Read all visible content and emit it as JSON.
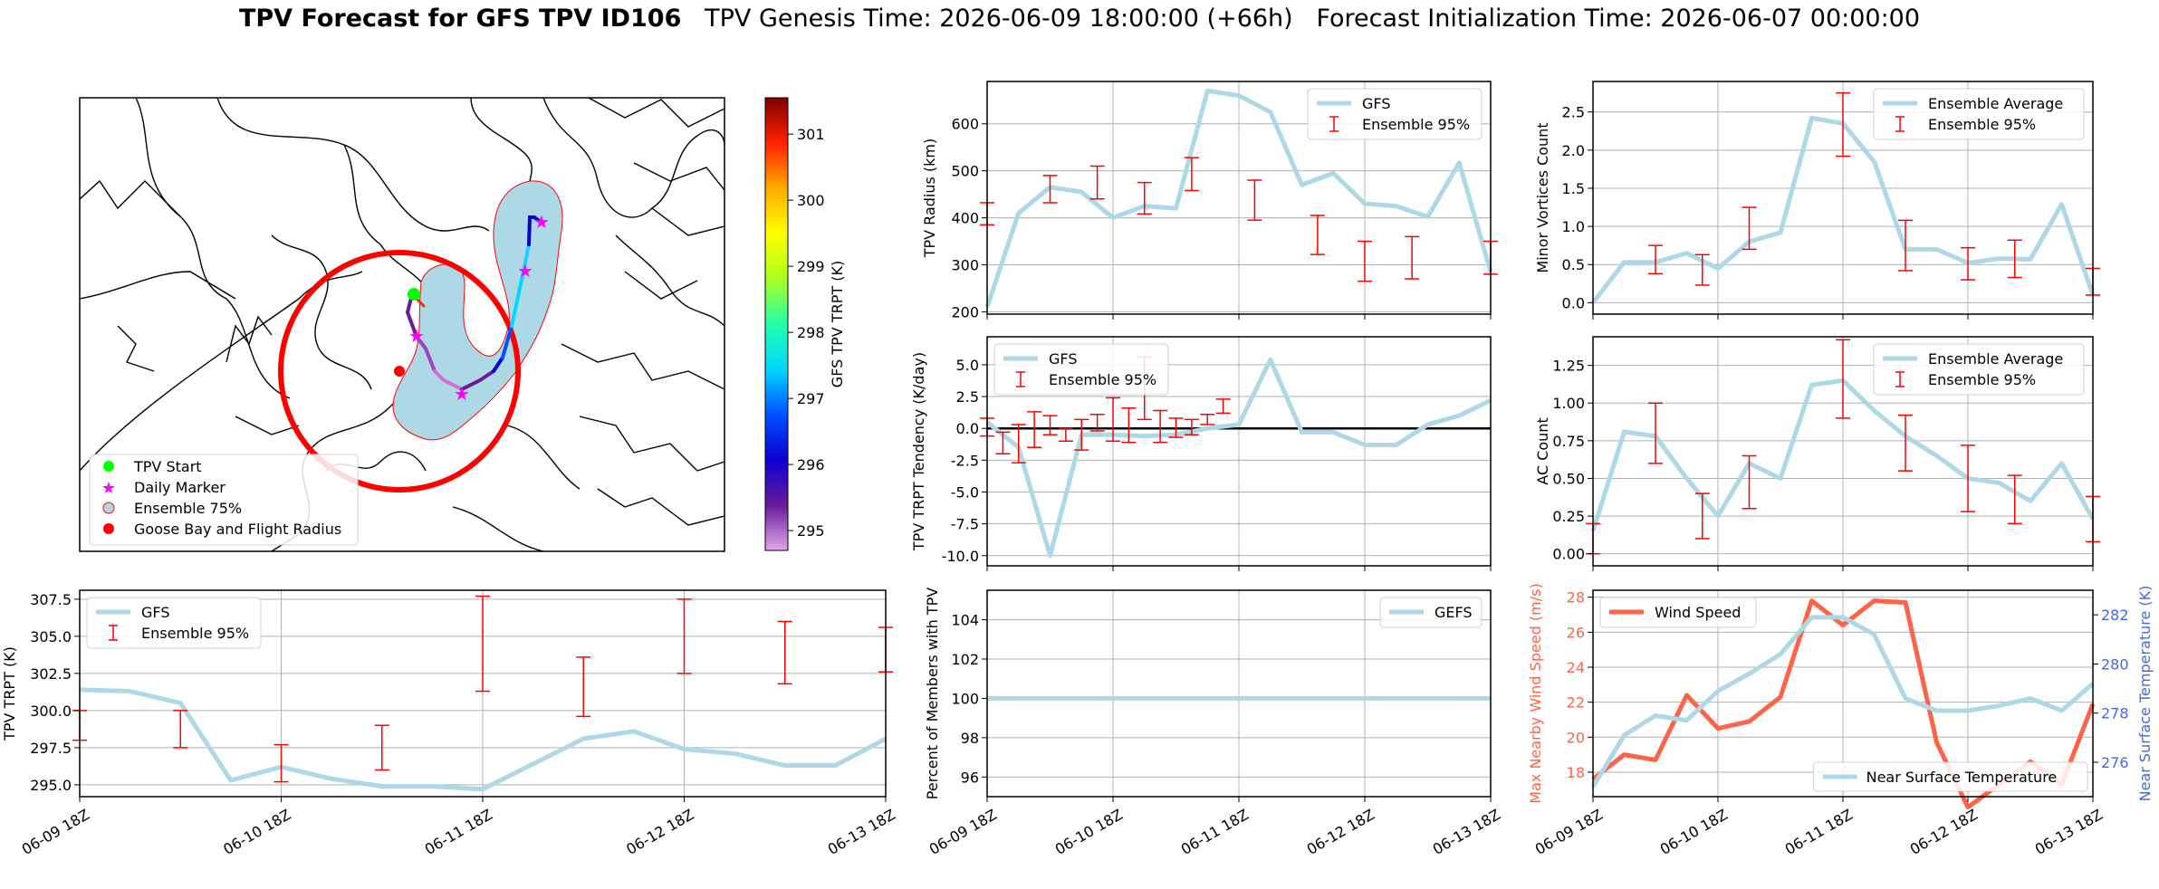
{
  "figure": {
    "title_bold": "TPV Forecast for GFS TPV ID106",
    "title_genesis": "TPV Genesis Time: 2026-06-09 18:00:00 (+66h)",
    "title_init": "Forecast Initialization Time: 2026-06-07 00:00:00"
  },
  "colors": {
    "gfs_line": "#add8e6",
    "error_bar": "#ff0000",
    "wind_line": "#ff6347",
    "temp_axis": "#4169e1",
    "grid": "#b0b0b0"
  },
  "time_ticks": [
    "06-09 18Z",
    "06-10 18Z",
    "06-11 18Z",
    "06-12 18Z",
    "06-13 18Z"
  ],
  "chart_data": [
    {
      "id": "map",
      "type": "map",
      "colorbar": {
        "label": "GFS TPV TRPT (K)",
        "ticks": [
          295,
          296,
          297,
          298,
          299,
          300,
          301
        ],
        "range": [
          294.7,
          301.55
        ],
        "colormap": "gist_ncar-like"
      },
      "legend": [
        "TPV Start",
        "Daily Marker",
        "Ensemble 75%",
        "Goose Bay and Flight Radius"
      ],
      "legend_placement": "lower-left",
      "legend_colors": [
        "#00ff00",
        "#ff00ff",
        "#add8e6",
        "#ff0000"
      ]
    },
    {
      "id": "radius",
      "type": "line",
      "ylabel": "TPV Radius (km)",
      "ylim": [
        195,
        690
      ],
      "yticks": [
        200,
        300,
        400,
        500,
        600
      ],
      "legend": [
        "GFS",
        "Ensemble 95%"
      ],
      "legend_placement": "top-right",
      "series": [
        {
          "name": "GFS",
          "x": [
            0,
            0.25,
            0.5,
            0.75,
            1,
            1.25,
            1.5,
            1.75,
            2,
            2.25,
            2.5,
            2.75,
            3,
            3.25,
            3.5,
            3.75,
            4
          ],
          "values": [
            210,
            410,
            465,
            455,
            400,
            425,
            420,
            670,
            660,
            625,
            470,
            495,
            430,
            425,
            402,
            517,
            285
          ]
        }
      ],
      "errorbars": [
        {
          "x": 0,
          "low": 385,
          "high": 432
        },
        {
          "x": 0.5,
          "low": 432,
          "high": 490
        },
        {
          "x": 0.875,
          "low": 440,
          "high": 510
        },
        {
          "x": 1.25,
          "low": 408,
          "high": 475
        },
        {
          "x": 1.625,
          "low": 458,
          "high": 528
        },
        {
          "x": 2.125,
          "low": 395,
          "high": 480
        },
        {
          "x": 2.625,
          "low": 322,
          "high": 405
        },
        {
          "x": 3,
          "low": 265,
          "high": 350
        },
        {
          "x": 3.375,
          "low": 270,
          "high": 360
        },
        {
          "x": 4,
          "low": 280,
          "high": 350
        }
      ]
    },
    {
      "id": "minor",
      "type": "line",
      "ylabel": "Minor Vortices Count",
      "ylim": [
        -0.15,
        2.9
      ],
      "yticks": [
        0.0,
        0.5,
        1.0,
        1.5,
        2.0,
        2.5
      ],
      "legend": [
        "Ensemble Average",
        "Ensemble 95%"
      ],
      "legend_placement": "top-right",
      "series": [
        {
          "name": "Ensemble Average",
          "x": [
            0,
            0.25,
            0.5,
            0.75,
            1,
            1.25,
            1.5,
            1.75,
            2,
            2.25,
            2.5,
            2.75,
            3,
            3.25,
            3.5,
            3.75,
            4
          ],
          "values": [
            0.0,
            0.53,
            0.53,
            0.65,
            0.45,
            0.8,
            0.92,
            2.42,
            2.35,
            1.85,
            0.7,
            0.7,
            0.52,
            0.58,
            0.57,
            1.29,
            0.1
          ]
        }
      ],
      "errorbars": [
        {
          "x": 0.5,
          "low": 0.38,
          "high": 0.75
        },
        {
          "x": 0.875,
          "low": 0.23,
          "high": 0.63
        },
        {
          "x": 1.25,
          "low": 0.7,
          "high": 1.25
        },
        {
          "x": 2,
          "low": 1.92,
          "high": 2.75
        },
        {
          "x": 2.5,
          "low": 0.42,
          "high": 1.08
        },
        {
          "x": 3,
          "low": 0.3,
          "high": 0.72
        },
        {
          "x": 3.375,
          "low": 0.33,
          "high": 0.82
        },
        {
          "x": 4,
          "low": 0.1,
          "high": 0.45
        }
      ]
    },
    {
      "id": "tendency",
      "type": "line",
      "ylabel": "TPV TRPT Tendency (K/day)",
      "ylim": [
        -10.8,
        7.2
      ],
      "yticks": [
        -10.0,
        -7.5,
        -5.0,
        -2.5,
        0.0,
        2.5,
        5.0
      ],
      "legend": [
        "GFS",
        "Ensemble 95%"
      ],
      "legend_placement": "top-left",
      "series": [
        {
          "name": "GFS",
          "x": [
            0,
            0.25,
            0.5,
            0.75,
            1,
            1.25,
            1.5,
            1.75,
            2,
            2.25,
            2.5,
            2.75,
            3,
            3.25,
            3.5,
            3.75,
            4
          ],
          "values": [
            0.5,
            -1.5,
            -10.0,
            -0.5,
            -0.5,
            -0.6,
            -0.5,
            0.0,
            0.3,
            5.4,
            -0.3,
            -0.3,
            -1.3,
            -1.3,
            0.3,
            1.0,
            2.2
          ]
        }
      ],
      "errorbars": [
        {
          "x": 0,
          "low": -0.6,
          "high": 0.8
        },
        {
          "x": 0.125,
          "low": -2.0,
          "high": -0.3
        },
        {
          "x": 0.25,
          "low": -2.7,
          "high": 0.3
        },
        {
          "x": 0.375,
          "low": -1.5,
          "high": 1.3
        },
        {
          "x": 0.5,
          "low": -0.5,
          "high": 1.0
        },
        {
          "x": 0.625,
          "low": -1.0,
          "high": 0.0
        },
        {
          "x": 0.75,
          "low": -1.7,
          "high": 0.7
        },
        {
          "x": 0.875,
          "low": -0.2,
          "high": 1.1
        },
        {
          "x": 1.0,
          "low": -1.0,
          "high": 2.4
        },
        {
          "x": 1.125,
          "low": -1.1,
          "high": 1.6
        },
        {
          "x": 1.25,
          "low": 0.7,
          "high": 5.6
        },
        {
          "x": 1.375,
          "low": -1.1,
          "high": 1.4
        },
        {
          "x": 1.5,
          "low": -0.7,
          "high": 0.8
        },
        {
          "x": 1.625,
          "low": -0.5,
          "high": 0.7
        },
        {
          "x": 1.75,
          "low": 0.3,
          "high": 1.1
        },
        {
          "x": 1.875,
          "low": 1.2,
          "high": 2.3
        }
      ]
    },
    {
      "id": "ac",
      "type": "line",
      "ylabel": "AC Count",
      "ylim": [
        -0.08,
        1.44
      ],
      "yticks": [
        0.0,
        0.25,
        0.5,
        0.75,
        1.0,
        1.25
      ],
      "legend": [
        "Ensemble Average",
        "Ensemble 95%"
      ],
      "legend_placement": "top-right",
      "series": [
        {
          "name": "Ensemble Average",
          "x": [
            0,
            0.25,
            0.5,
            0.75,
            1,
            1.25,
            1.5,
            1.75,
            2,
            2.25,
            2.5,
            2.75,
            3,
            3.25,
            3.5,
            3.75,
            4
          ],
          "values": [
            0.15,
            0.81,
            0.78,
            0.5,
            0.25,
            0.6,
            0.5,
            1.12,
            1.15,
            0.95,
            0.78,
            0.65,
            0.5,
            0.47,
            0.35,
            0.6,
            0.23
          ]
        }
      ],
      "errorbars": [
        {
          "x": 0,
          "low": 0.0,
          "high": 0.2
        },
        {
          "x": 0.5,
          "low": 0.6,
          "high": 1.0
        },
        {
          "x": 0.875,
          "low": 0.1,
          "high": 0.4
        },
        {
          "x": 1.25,
          "low": 0.3,
          "high": 0.65
        },
        {
          "x": 2,
          "low": 0.9,
          "high": 1.42
        },
        {
          "x": 2.5,
          "low": 0.55,
          "high": 0.92
        },
        {
          "x": 3,
          "low": 0.28,
          "high": 0.72
        },
        {
          "x": 3.375,
          "low": 0.2,
          "high": 0.52
        },
        {
          "x": 4,
          "low": 0.08,
          "high": 0.38
        }
      ]
    },
    {
      "id": "trpt",
      "type": "line",
      "ylabel": "TPV TRPT (K)",
      "ylim": [
        294.2,
        308.1
      ],
      "yticks": [
        295.0,
        297.5,
        300.0,
        302.5,
        305.0,
        307.5
      ],
      "legend": [
        "GFS",
        "Ensemble 95%"
      ],
      "legend_placement": "top-left",
      "series": [
        {
          "name": "GFS",
          "x": [
            0,
            0.25,
            0.5,
            0.75,
            1,
            1.25,
            1.5,
            1.75,
            2,
            2.25,
            2.5,
            2.75,
            3,
            3.25,
            3.5,
            3.75,
            4
          ],
          "values": [
            301.4,
            301.3,
            300.5,
            295.3,
            296.2,
            295.4,
            294.9,
            294.9,
            294.7,
            296.4,
            298.1,
            298.6,
            297.4,
            297.1,
            296.3,
            296.3,
            298.1
          ]
        }
      ],
      "errorbars": [
        {
          "x": 0,
          "low": 298.0,
          "high": 300.0
        },
        {
          "x": 0.5,
          "low": 297.5,
          "high": 300.0
        },
        {
          "x": 1,
          "low": 295.2,
          "high": 297.7
        },
        {
          "x": 1.5,
          "low": 296.0,
          "high": 299.0
        },
        {
          "x": 2,
          "low": 301.3,
          "high": 307.7
        },
        {
          "x": 2.5,
          "low": 299.6,
          "high": 303.6
        },
        {
          "x": 3,
          "low": 302.5,
          "high": 307.5
        },
        {
          "x": 3.5,
          "low": 301.8,
          "high": 306.0
        },
        {
          "x": 4,
          "low": 302.6,
          "high": 305.6
        }
      ]
    },
    {
      "id": "members",
      "type": "line",
      "ylabel": "Percent of Members with TPV",
      "ylim": [
        95.0,
        105.5
      ],
      "yticks": [
        96,
        98,
        100,
        102,
        104
      ],
      "legend": [
        "GEFS"
      ],
      "legend_placement": "top-right",
      "series": [
        {
          "name": "GEFS",
          "x": [
            0,
            4
          ],
          "values": [
            100,
            100
          ]
        }
      ]
    },
    {
      "id": "wind",
      "type": "line",
      "ylabel": "Max Nearby Wind Speed (m/s)",
      "ylabel2": "Near Surface Temperature (K)",
      "ylim": [
        16.6,
        28.4
      ],
      "ylim2": [
        274.6,
        283.0
      ],
      "yticks": [
        18,
        20,
        22,
        24,
        26,
        28
      ],
      "yticks2": [
        276,
        278,
        280,
        282
      ],
      "legend": [
        "Wind Speed"
      ],
      "legend2": [
        "Near Surface Temperature"
      ],
      "legend_placement": "top-left",
      "legend2_placement": "bottom-right",
      "series": [
        {
          "name": "Wind Speed",
          "x": [
            0,
            0.25,
            0.5,
            0.75,
            1,
            1.25,
            1.5,
            1.75,
            2,
            2.25,
            2.5,
            2.75,
            3,
            3.25,
            3.5,
            3.75,
            4
          ],
          "values": [
            17.6,
            19.0,
            18.7,
            22.4,
            20.5,
            20.9,
            22.3,
            27.8,
            26.4,
            27.8,
            27.7,
            19.7,
            16.0,
            17.3,
            18.6,
            17.3,
            21.9
          ]
        },
        {
          "name": "Near Surface Temperature",
          "axis": "right",
          "x": [
            0,
            0.25,
            0.5,
            0.75,
            1,
            1.25,
            1.5,
            1.75,
            2,
            2.25,
            2.5,
            2.75,
            3,
            3.25,
            3.5,
            3.75,
            4
          ],
          "values": [
            275.0,
            277.1,
            277.9,
            277.7,
            278.9,
            279.6,
            280.4,
            281.9,
            281.9,
            281.2,
            278.6,
            278.1,
            278.1,
            278.3,
            278.6,
            278.1,
            279.2
          ]
        }
      ]
    }
  ]
}
